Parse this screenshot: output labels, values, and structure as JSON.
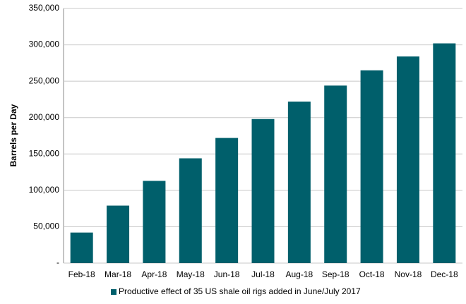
{
  "chart_data": {
    "type": "bar",
    "categories": [
      "Feb-18",
      "Mar-18",
      "Apr-18",
      "May-18",
      "Jun-18",
      "Jul-18",
      "Aug-18",
      "Sep-18",
      "Oct-18",
      "Nov-18",
      "Dec-18"
    ],
    "series": [
      {
        "name": "Productive effect of 35 US shale oil rigs added in June/July 2017",
        "color": "#005f6b",
        "values": [
          42000,
          79000,
          113000,
          144000,
          172000,
          198000,
          222000,
          244000,
          265000,
          284000,
          302000
        ]
      }
    ],
    "y_label": "Barrels per Day",
    "ylim": [
      0,
      350000
    ],
    "yticks": [
      {
        "value": 0,
        "label": "-"
      },
      {
        "value": 50000,
        "label": "50,000"
      },
      {
        "value": 100000,
        "label": "100,000"
      },
      {
        "value": 150000,
        "label": "150,000"
      },
      {
        "value": 200000,
        "label": "200,000"
      },
      {
        "value": 250000,
        "label": "250,000"
      },
      {
        "value": 300000,
        "label": "300,000"
      },
      {
        "value": 350000,
        "label": "350,000"
      }
    ],
    "grid": true,
    "legend": "bottom"
  }
}
